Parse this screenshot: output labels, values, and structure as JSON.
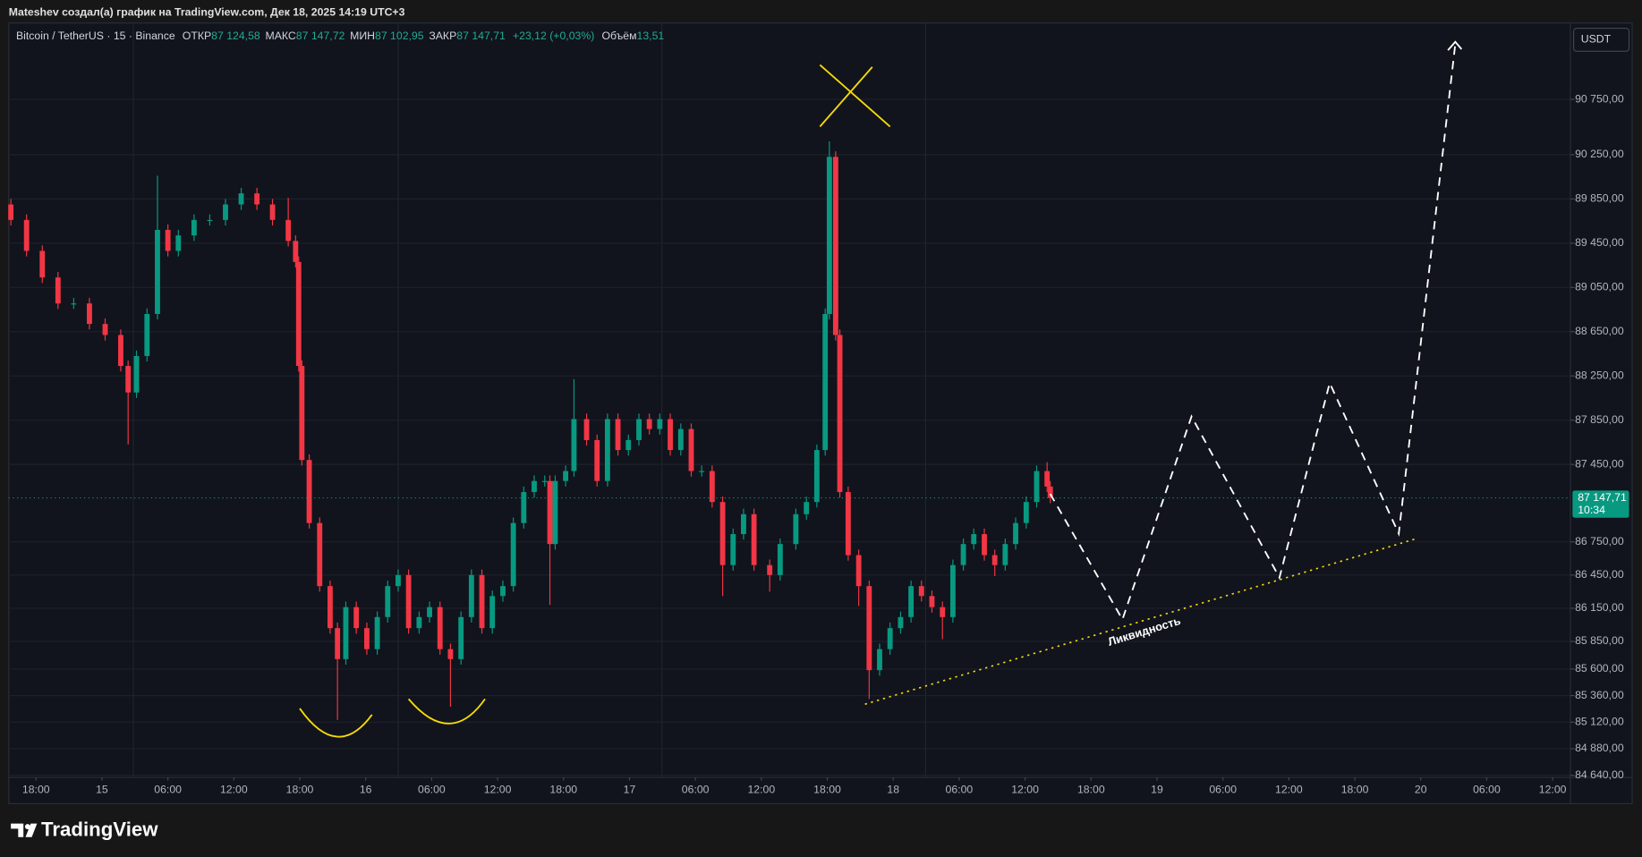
{
  "header": {
    "text": "Mateshev создал(а) график на TradingView.com, Дек 18, 2025 14:19 UTC+3"
  },
  "chart_data": {
    "type": "candlestick",
    "legend": {
      "symbol": "Bitcoin / TetherUS · 15 · Binance",
      "open_label": "ОТКР",
      "open": "87 124,58",
      "high_label": "МАКС",
      "high": "87 147,72",
      "low_label": "МИН",
      "low": "87 102,95",
      "close_label": "ЗАКР",
      "close": "87 147,71",
      "change": "+23,12 (+0,03%)",
      "volume_label": "Объём",
      "volume": "13,51"
    },
    "currency": "USDT",
    "up_color": "#089981",
    "down_color": "#f23645",
    "x": [
      15.71,
      17.14,
      18.57,
      20.0,
      21.43,
      22.86,
      24.29,
      25.71,
      26.38,
      27.14,
      28.1,
      29.05,
      30.0,
      30.95,
      32.38,
      33.81,
      35.24,
      36.67,
      38.1,
      39.52,
      40.95,
      41.62,
      41.9,
      42.19,
      42.86,
      43.81,
      44.76,
      45.43,
      46.19,
      47.14,
      48.1,
      49.05,
      50.0,
      50.95,
      51.9,
      52.86,
      53.81,
      54.76,
      55.71,
      56.67,
      57.62,
      58.57,
      59.52,
      60.48,
      61.43,
      62.38,
      63.33,
      64.29,
      64.76,
      65.24,
      66.19,
      66.95,
      68.1,
      69.05,
      70.0,
      70.95,
      71.9,
      72.86,
      73.81,
      74.76,
      75.71,
      76.67,
      77.62,
      78.57,
      79.52,
      80.48,
      81.43,
      82.38,
      83.33,
      84.76,
      85.71,
      87.14,
      88.1,
      89.05,
      89.81,
      90.19,
      90.76,
      91.14,
      91.9,
      92.86,
      93.81,
      94.76,
      95.71,
      96.67,
      97.62,
      98.57,
      99.52,
      100.48,
      101.43,
      102.38,
      103.33,
      104.29,
      105.24,
      106.19,
      107.14,
      108.1,
      109.05,
      110.0,
      110.29
    ],
    "open": [
      89800,
      89660,
      89380,
      89140,
      88905,
      88905,
      88720,
      88620,
      88340,
      88100,
      88430,
      88810,
      89570,
      89380,
      89520,
      89660,
      89660,
      89800,
      89900,
      89800,
      89660,
      89470,
      89280,
      88340,
      87490,
      86920,
      86350,
      85970,
      85690,
      86160,
      85970,
      85780,
      86070,
      86350,
      86450,
      85970,
      86070,
      86160,
      85780,
      85690,
      86070,
      86450,
      85970,
      86260,
      86350,
      86920,
      87200,
      87300,
      87300,
      86730,
      87300,
      87390,
      87860,
      87670,
      87300,
      87860,
      87580,
      87670,
      87860,
      87770,
      87860,
      87580,
      87770,
      87390,
      87390,
      87110,
      86540,
      86820,
      87000,
      86540,
      86450,
      86730,
      87000,
      87110,
      87580,
      88810,
      90230,
      88620,
      87200,
      86630,
      86350,
      85590,
      85780,
      85970,
      86070,
      86350,
      86260,
      86160,
      86070,
      86540,
      86730,
      86820,
      86630,
      86540,
      86730,
      86920,
      87110,
      87390,
      87250
    ],
    "high": [
      89850,
      89710,
      89430,
      89190,
      88955,
      88955,
      88770,
      88670,
      88390,
      88480,
      88860,
      90060,
      89620,
      89570,
      89710,
      89710,
      89850,
      89950,
      89950,
      89850,
      89860,
      89520,
      89330,
      88390,
      87540,
      86970,
      86400,
      86020,
      86210,
      86210,
      86020,
      86120,
      86400,
      86500,
      86500,
      86120,
      86210,
      86210,
      85830,
      86120,
      86500,
      86500,
      86310,
      86400,
      86970,
      87250,
      87350,
      87350,
      87350,
      87350,
      87440,
      88220,
      87910,
      87720,
      87910,
      87910,
      87720,
      87910,
      87910,
      87910,
      87910,
      87820,
      87820,
      87440,
      87440,
      87160,
      86870,
      87050,
      87050,
      86590,
      86780,
      87050,
      87160,
      87630,
      88860,
      90370,
      90280,
      88670,
      87250,
      86680,
      86400,
      85830,
      86020,
      86120,
      86400,
      86400,
      86310,
      86210,
      86590,
      86780,
      86870,
      86870,
      86680,
      86780,
      86970,
      87160,
      87440,
      87470,
      87300
    ],
    "low": [
      89610,
      89330,
      89090,
      88855,
      88855,
      88670,
      88570,
      88290,
      87630,
      88050,
      88380,
      88760,
      89330,
      89330,
      89470,
      89610,
      89610,
      89750,
      89750,
      89610,
      89420,
      89230,
      88290,
      87440,
      86870,
      86300,
      85920,
      85140,
      85640,
      85920,
      85730,
      85730,
      86020,
      86300,
      85920,
      85920,
      86020,
      85730,
      85260,
      85640,
      86020,
      85920,
      85920,
      86210,
      86300,
      86870,
      87150,
      87250,
      86180,
      86680,
      87250,
      87340,
      87620,
      87250,
      87250,
      87530,
      87530,
      87620,
      87720,
      87720,
      87530,
      87530,
      87340,
      87340,
      87060,
      86260,
      86490,
      86770,
      86490,
      86300,
      86400,
      86680,
      86950,
      87060,
      87530,
      88760,
      88570,
      87150,
      86580,
      86170,
      85330,
      85540,
      85730,
      85920,
      86020,
      86210,
      86110,
      85870,
      86020,
      86490,
      86680,
      86580,
      86440,
      86490,
      86680,
      86870,
      87060,
      87200,
      87100
    ],
    "close": [
      89660,
      89380,
      89140,
      88905,
      88905,
      88720,
      88620,
      88340,
      88100,
      88430,
      88810,
      89570,
      89380,
      89520,
      89660,
      89660,
      89800,
      89900,
      89800,
      89660,
      89470,
      89280,
      88340,
      87490,
      86920,
      86350,
      85970,
      85690,
      86160,
      85970,
      85780,
      86070,
      86350,
      86450,
      85970,
      86070,
      86160,
      85780,
      85690,
      86070,
      86450,
      85970,
      86260,
      86350,
      86920,
      87200,
      87300,
      87300,
      86730,
      87300,
      87390,
      87860,
      87670,
      87300,
      87860,
      87580,
      87670,
      87860,
      87770,
      87860,
      87580,
      87770,
      87390,
      87390,
      87110,
      86540,
      86820,
      87000,
      86540,
      86450,
      86730,
      87000,
      87110,
      87580,
      88810,
      90230,
      88620,
      87200,
      86630,
      86350,
      85590,
      85780,
      85970,
      86070,
      86350,
      86260,
      86160,
      86070,
      86540,
      86730,
      86820,
      86630,
      86540,
      86730,
      86920,
      87110,
      87390,
      87250,
      87147.71
    ],
    "xlim": [
      15.52,
      157.62
    ],
    "xticks": [
      {
        "value": 18,
        "label": "18:00"
      },
      {
        "value": 24,
        "label": "15"
      },
      {
        "value": 30,
        "label": "06:00"
      },
      {
        "value": 36,
        "label": "12:00"
      },
      {
        "value": 42,
        "label": "18:00"
      },
      {
        "value": 48,
        "label": "16"
      },
      {
        "value": 54,
        "label": "06:00"
      },
      {
        "value": 60,
        "label": "12:00"
      },
      {
        "value": 66,
        "label": "18:00"
      },
      {
        "value": 72,
        "label": "17"
      },
      {
        "value": 78,
        "label": "06:00"
      },
      {
        "value": 84,
        "label": "12:00"
      },
      {
        "value": 90,
        "label": "18:00"
      },
      {
        "value": 96,
        "label": "18"
      },
      {
        "value": 102,
        "label": "06:00"
      },
      {
        "value": 108,
        "label": "12:00"
      },
      {
        "value": 114,
        "label": "18:00"
      },
      {
        "value": 120,
        "label": "19"
      },
      {
        "value": 126,
        "label": "06:00"
      },
      {
        "value": 132,
        "label": "12:00"
      },
      {
        "value": 138,
        "label": "18:00"
      },
      {
        "value": 144,
        "label": "20"
      },
      {
        "value": 150,
        "label": "06:00"
      },
      {
        "value": 156,
        "label": "12:00"
      }
    ],
    "ylim": [
      84620,
      91440
    ],
    "yticks": [
      {
        "value": 90750,
        "label": "90 750,00"
      },
      {
        "value": 90250,
        "label": "90 250,00"
      },
      {
        "value": 89850,
        "label": "89 850,00"
      },
      {
        "value": 89450,
        "label": "89 450,00"
      },
      {
        "value": 89050,
        "label": "89 050,00"
      },
      {
        "value": 88650,
        "label": "88 650,00"
      },
      {
        "value": 88250,
        "label": "88 250,00"
      },
      {
        "value": 87850,
        "label": "87 850,00"
      },
      {
        "value": 87450,
        "label": "87 450,00"
      },
      {
        "value": 86750,
        "label": "86 750,00"
      },
      {
        "value": 86450,
        "label": "86 450,00"
      },
      {
        "value": 86150,
        "label": "86 150,00"
      },
      {
        "value": 85850,
        "label": "85 850,00"
      },
      {
        "value": 85600,
        "label": "85 600,00"
      },
      {
        "value": 85360,
        "label": "85 360,00"
      },
      {
        "value": 85120,
        "label": "85 120,00"
      },
      {
        "value": 84880,
        "label": "84 880,00"
      },
      {
        "value": 84640,
        "label": "84 640,00"
      }
    ],
    "grid": true,
    "last_price": {
      "value": 87147.71,
      "label": "87 147,71"
    },
    "last_price_color": "#089981",
    "countdown": "10:34",
    "annotation": "Ликвидность"
  },
  "footer": {
    "brand": "TradingView"
  }
}
